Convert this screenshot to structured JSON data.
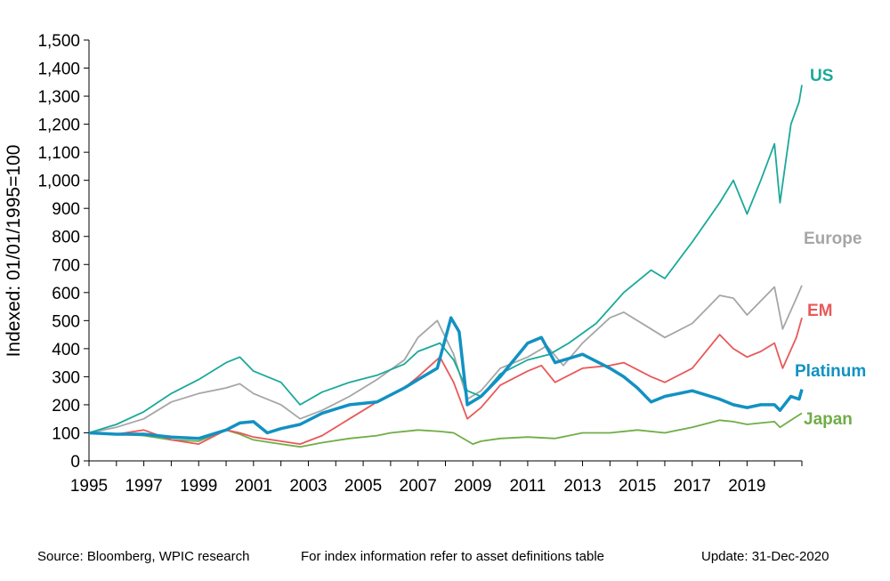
{
  "chart_data": {
    "type": "line",
    "title": "",
    "xlabel": "",
    "ylabel": "Indexed: 01/01/1995=100",
    "xlim": [
      1995,
      2021
    ],
    "ylim": [
      0,
      1500
    ],
    "x_ticks": [
      "1995",
      "1997",
      "1999",
      "2001",
      "2003",
      "2005",
      "2007",
      "2009",
      "2011",
      "2013",
      "2015",
      "2017",
      "2019"
    ],
    "y_ticks": [
      "0",
      "100",
      "200",
      "300",
      "400",
      "500",
      "600",
      "700",
      "800",
      "900",
      "1,000",
      "1,100",
      "1,200",
      "1,300",
      "1,400",
      "1,500"
    ],
    "grid": false,
    "legend": "inline labels at right end of lines",
    "series": [
      {
        "name": "US",
        "color": "#1aa99a",
        "points": [
          [
            1995,
            100
          ],
          [
            1996,
            130
          ],
          [
            1997,
            175
          ],
          [
            1998,
            240
          ],
          [
            1999,
            290
          ],
          [
            2000,
            350
          ],
          [
            2000.5,
            370
          ],
          [
            2001,
            320
          ],
          [
            2002,
            280
          ],
          [
            2002.7,
            200
          ],
          [
            2003.5,
            245
          ],
          [
            2004.5,
            280
          ],
          [
            2005.5,
            305
          ],
          [
            2006.5,
            345
          ],
          [
            2007,
            390
          ],
          [
            2007.8,
            420
          ],
          [
            2008.3,
            360
          ],
          [
            2008.8,
            250
          ],
          [
            2009.3,
            230
          ],
          [
            2010,
            310
          ],
          [
            2011,
            360
          ],
          [
            2011.8,
            380
          ],
          [
            2012.5,
            420
          ],
          [
            2013.5,
            490
          ],
          [
            2014.5,
            600
          ],
          [
            2015.5,
            680
          ],
          [
            2016,
            650
          ],
          [
            2017,
            780
          ],
          [
            2018,
            920
          ],
          [
            2018.5,
            1000
          ],
          [
            2019,
            880
          ],
          [
            2019.5,
            1000
          ],
          [
            2020,
            1130
          ],
          [
            2020.2,
            920
          ],
          [
            2020.6,
            1200
          ],
          [
            2020.9,
            1280
          ],
          [
            2021,
            1340
          ]
        ]
      },
      {
        "name": "Europe",
        "color": "#a6a6a6",
        "points": [
          [
            1995,
            100
          ],
          [
            1996,
            120
          ],
          [
            1997,
            150
          ],
          [
            1998,
            210
          ],
          [
            1999,
            240
          ],
          [
            2000,
            260
          ],
          [
            2000.5,
            275
          ],
          [
            2001,
            240
          ],
          [
            2002,
            200
          ],
          [
            2002.7,
            150
          ],
          [
            2003.5,
            180
          ],
          [
            2004.5,
            230
          ],
          [
            2005.5,
            290
          ],
          [
            2006.5,
            360
          ],
          [
            2007,
            440
          ],
          [
            2007.7,
            500
          ],
          [
            2008.3,
            380
          ],
          [
            2008.8,
            220
          ],
          [
            2009.3,
            250
          ],
          [
            2010,
            330
          ],
          [
            2011,
            370
          ],
          [
            2011.7,
            410
          ],
          [
            2012.3,
            340
          ],
          [
            2013,
            420
          ],
          [
            2014,
            510
          ],
          [
            2014.5,
            530
          ],
          [
            2015.5,
            470
          ],
          [
            2016,
            440
          ],
          [
            2017,
            490
          ],
          [
            2018,
            590
          ],
          [
            2018.5,
            580
          ],
          [
            2019,
            520
          ],
          [
            2019.5,
            570
          ],
          [
            2020,
            620
          ],
          [
            2020.3,
            470
          ],
          [
            2020.8,
            580
          ],
          [
            2021,
            625
          ]
        ]
      },
      {
        "name": "EM",
        "color": "#e8595a",
        "points": [
          [
            1995,
            100
          ],
          [
            1996,
            95
          ],
          [
            1997,
            110
          ],
          [
            1998,
            75
          ],
          [
            1999,
            60
          ],
          [
            2000,
            110
          ],
          [
            2000.5,
            100
          ],
          [
            2001,
            85
          ],
          [
            2002,
            70
          ],
          [
            2002.7,
            60
          ],
          [
            2003.5,
            90
          ],
          [
            2004.5,
            150
          ],
          [
            2005.5,
            210
          ],
          [
            2006.5,
            260
          ],
          [
            2007,
            300
          ],
          [
            2007.8,
            370
          ],
          [
            2008.3,
            280
          ],
          [
            2008.8,
            150
          ],
          [
            2009.3,
            190
          ],
          [
            2010,
            270
          ],
          [
            2011,
            320
          ],
          [
            2011.5,
            340
          ],
          [
            2012,
            280
          ],
          [
            2013,
            330
          ],
          [
            2014,
            340
          ],
          [
            2014.5,
            350
          ],
          [
            2015.5,
            300
          ],
          [
            2016,
            280
          ],
          [
            2017,
            330
          ],
          [
            2018,
            450
          ],
          [
            2018.5,
            400
          ],
          [
            2019,
            370
          ],
          [
            2019.5,
            390
          ],
          [
            2020,
            420
          ],
          [
            2020.3,
            330
          ],
          [
            2020.8,
            440
          ],
          [
            2021,
            510
          ]
        ]
      },
      {
        "name": "Platinum",
        "color": "#1291c2",
        "points": [
          [
            1995,
            100
          ],
          [
            1996,
            95
          ],
          [
            1997,
            95
          ],
          [
            1998,
            85
          ],
          [
            1999,
            80
          ],
          [
            2000,
            110
          ],
          [
            2000.5,
            135
          ],
          [
            2001,
            140
          ],
          [
            2001.5,
            100
          ],
          [
            2002,
            115
          ],
          [
            2002.7,
            130
          ],
          [
            2003.5,
            170
          ],
          [
            2004.5,
            200
          ],
          [
            2005.5,
            210
          ],
          [
            2006.5,
            260
          ],
          [
            2007,
            290
          ],
          [
            2007.7,
            330
          ],
          [
            2008.2,
            510
          ],
          [
            2008.5,
            460
          ],
          [
            2008.8,
            200
          ],
          [
            2009.3,
            230
          ],
          [
            2010,
            300
          ],
          [
            2011,
            420
          ],
          [
            2011.5,
            440
          ],
          [
            2012,
            350
          ],
          [
            2013,
            380
          ],
          [
            2014,
            330
          ],
          [
            2014.5,
            300
          ],
          [
            2015,
            260
          ],
          [
            2015.5,
            210
          ],
          [
            2016,
            230
          ],
          [
            2017,
            250
          ],
          [
            2018,
            220
          ],
          [
            2018.5,
            200
          ],
          [
            2019,
            190
          ],
          [
            2019.5,
            200
          ],
          [
            2020,
            200
          ],
          [
            2020.2,
            180
          ],
          [
            2020.6,
            230
          ],
          [
            2020.9,
            220
          ],
          [
            2021,
            255
          ]
        ]
      },
      {
        "name": "Japan",
        "color": "#70ad47",
        "points": [
          [
            1995,
            100
          ],
          [
            1996,
            95
          ],
          [
            1997,
            90
          ],
          [
            1998,
            75
          ],
          [
            1999,
            70
          ],
          [
            2000,
            110
          ],
          [
            2000.5,
            95
          ],
          [
            2001,
            75
          ],
          [
            2002,
            60
          ],
          [
            2002.7,
            50
          ],
          [
            2003.5,
            65
          ],
          [
            2004.5,
            80
          ],
          [
            2005.5,
            90
          ],
          [
            2006,
            100
          ],
          [
            2007,
            110
          ],
          [
            2007.8,
            105
          ],
          [
            2008.3,
            100
          ],
          [
            2009,
            60
          ],
          [
            2009.3,
            70
          ],
          [
            2010,
            80
          ],
          [
            2011,
            85
          ],
          [
            2012,
            80
          ],
          [
            2013,
            100
          ],
          [
            2014,
            100
          ],
          [
            2015,
            110
          ],
          [
            2016,
            100
          ],
          [
            2017,
            120
          ],
          [
            2018,
            145
          ],
          [
            2018.5,
            140
          ],
          [
            2019,
            130
          ],
          [
            2019.5,
            135
          ],
          [
            2020,
            140
          ],
          [
            2020.2,
            120
          ],
          [
            2020.6,
            145
          ],
          [
            2021,
            170
          ]
        ]
      }
    ]
  },
  "footer": {
    "source": "Source: Bloomberg, WPIC research",
    "note": "For index information refer to asset definitions table",
    "update": "Update: 31-Dec-2020"
  }
}
